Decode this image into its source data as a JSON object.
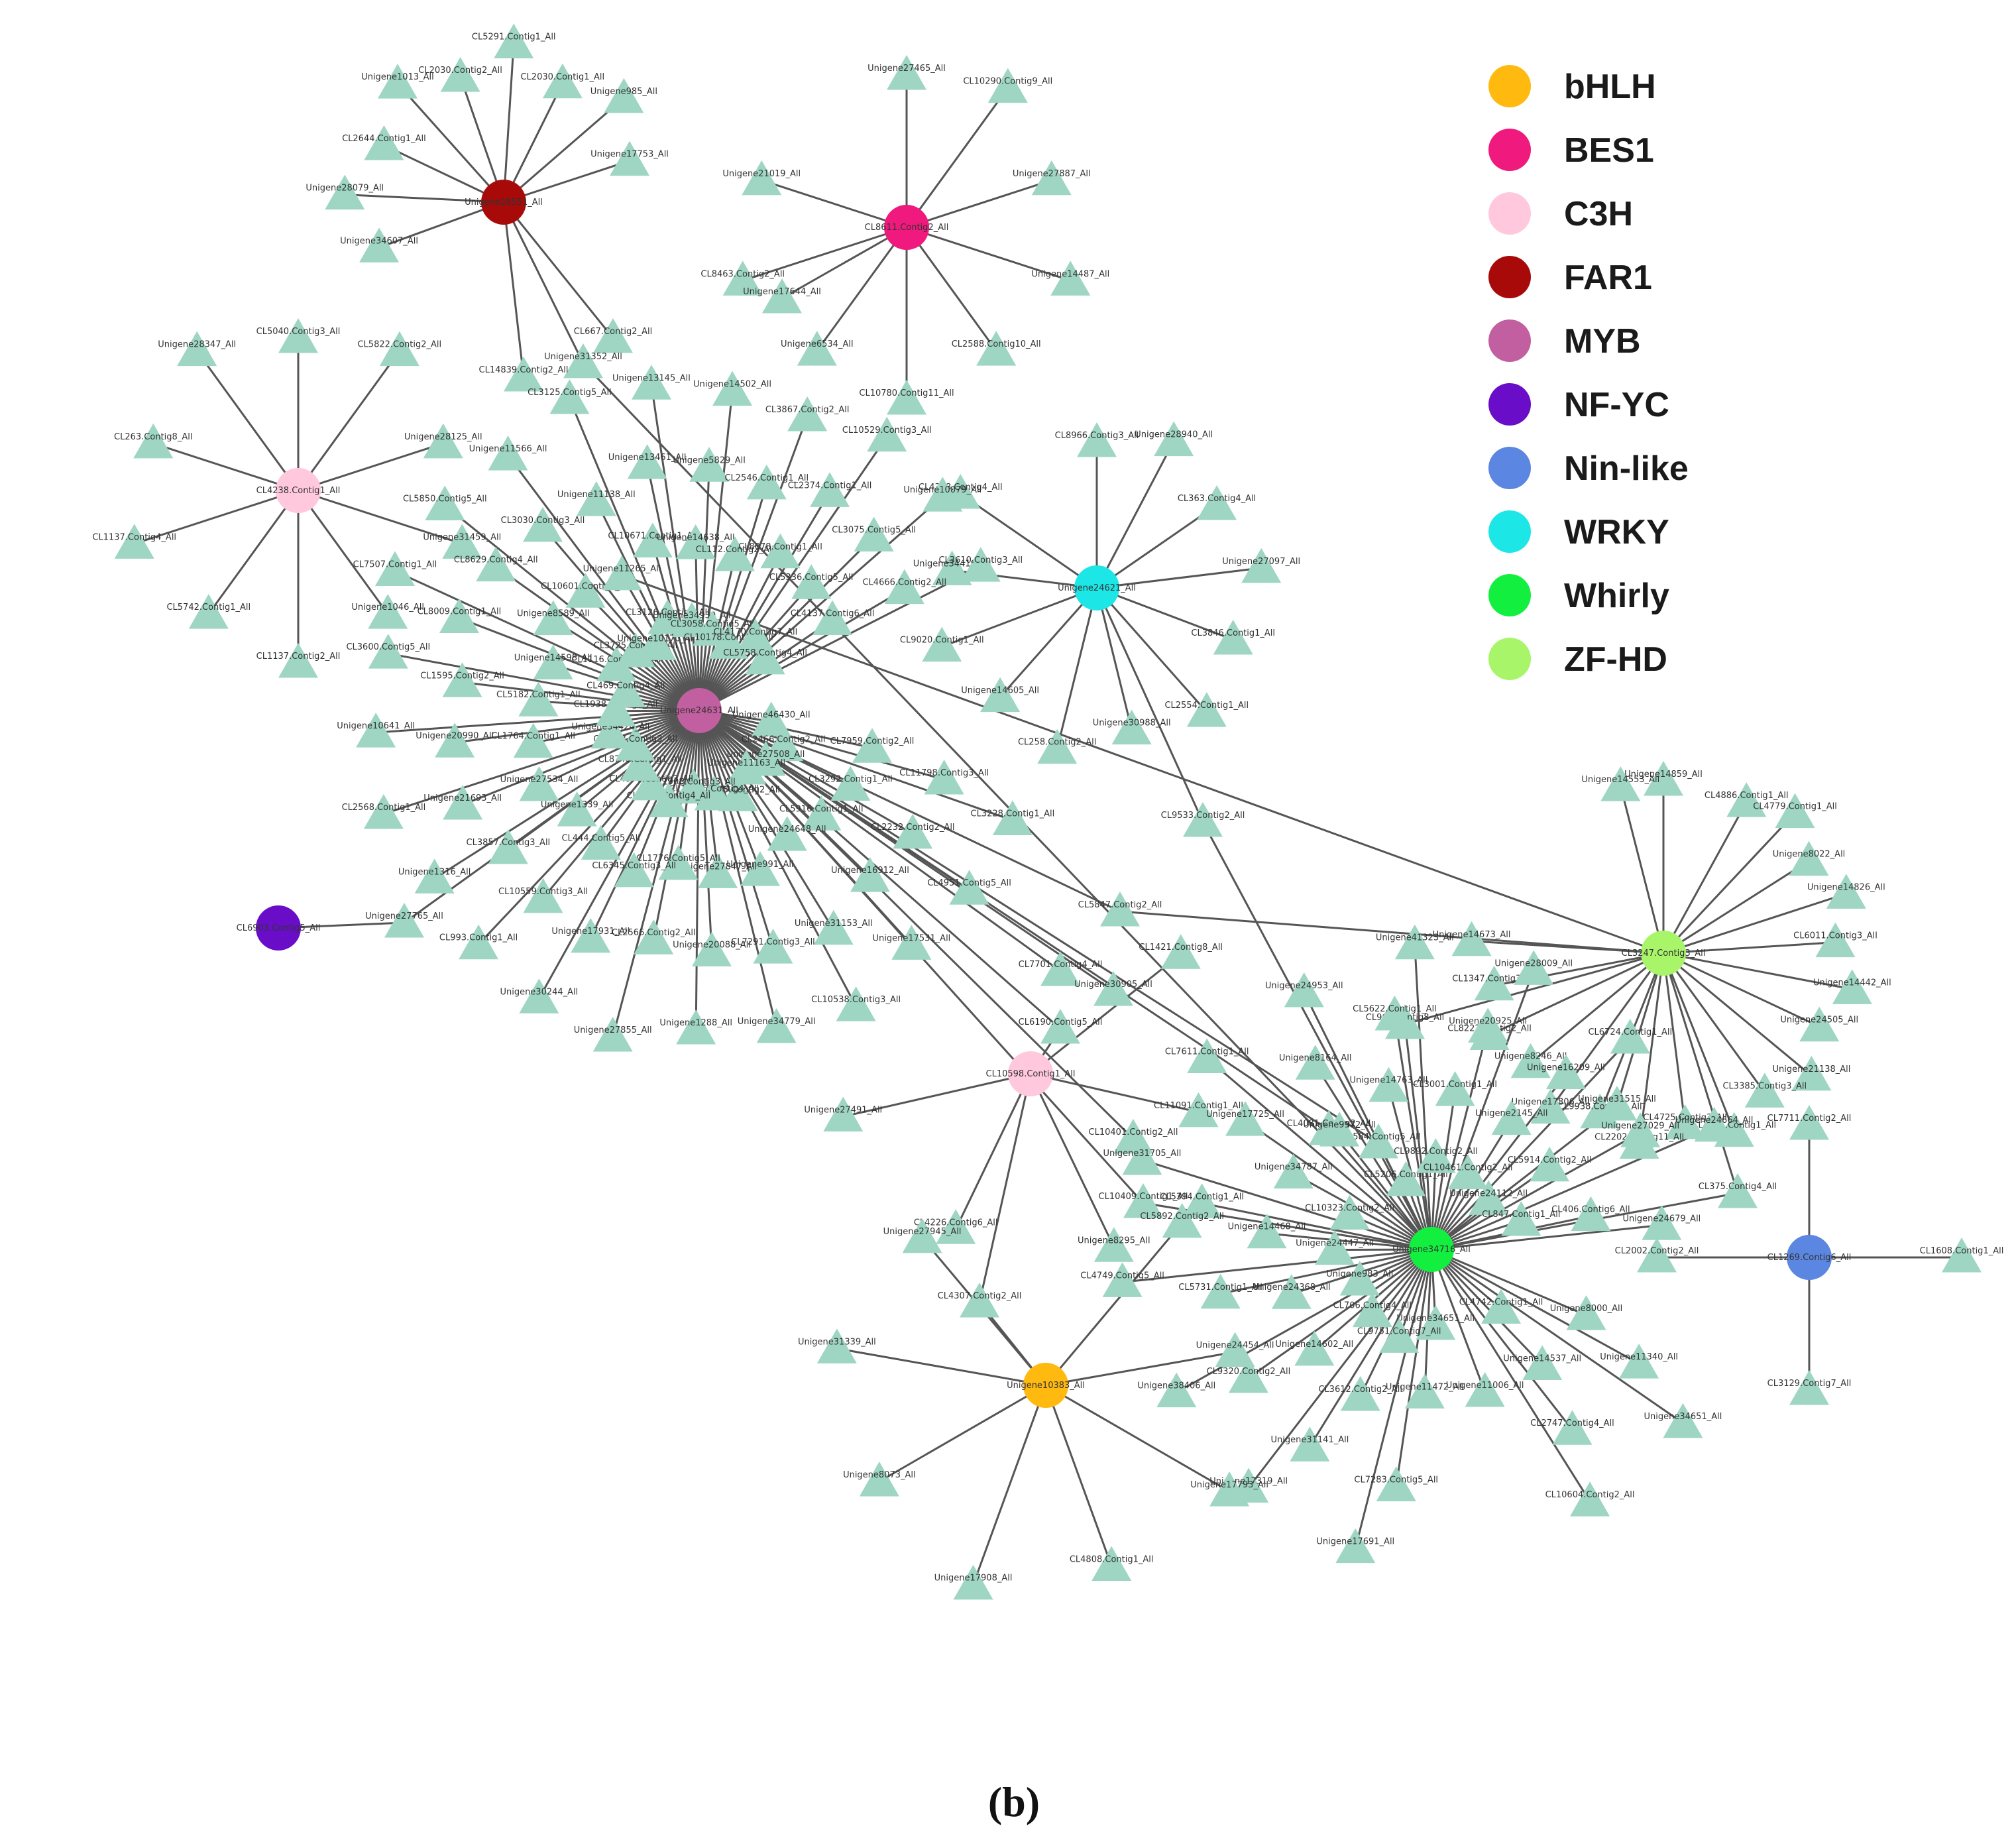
{
  "legend": [
    {
      "name": "bHLH",
      "color": "#FFB90F"
    },
    {
      "name": "BES1",
      "color": "#F0197D"
    },
    {
      "name": "C3H",
      "color": "#FFC8DD"
    },
    {
      "name": "FAR1",
      "color": "#A80A0A"
    },
    {
      "name": "MYB",
      "color": "#C25FA0"
    },
    {
      "name": "NF-YC",
      "color": "#6A0DC9"
    },
    {
      "name": "Nin-like",
      "color": "#5B86E1"
    },
    {
      "name": "WRKY",
      "color": "#1DE6E6"
    },
    {
      "name": "Whirly",
      "color": "#13EF3F"
    },
    {
      "name": "ZF-HD",
      "color": "#A8F56A"
    }
  ],
  "caption": "(b)",
  "target_color": "#9ed6c3",
  "hubs": [
    {
      "id": "FAR1",
      "family": "FAR1",
      "label": "Unigene28551_All",
      "targets": [
        "Unigene34607_All",
        "Unigene28079_All",
        "CL2644.Contig1_All",
        "Unigene1013_All",
        "CL2030.Contig2_All",
        "CL5291.Contig1_All",
        "CL2030.Contig1_All",
        "Unigene985_All",
        "Unigene17753_All",
        "CL667.Contig2_All",
        "Unigene31352_All",
        "CL14839.Contig2_All"
      ]
    },
    {
      "id": "BES1",
      "family": "BES1",
      "label": "CL8611.Contig2_All",
      "targets": [
        "Unigene27465_All",
        "CL10290.Contig9_All",
        "Unigene27887_All",
        "Unigene14487_All",
        "CL2588.Contig10_All",
        "CL10780.Contig11_All",
        "Unigene6534_All",
        "CL8463.Contig2_All",
        "Unigene21019_All",
        "Unigene17644_All"
      ]
    },
    {
      "id": "C3H-a",
      "family": "C3H",
      "label": "CL4238.Contig1_All",
      "targets": [
        "CL5040.Contig3_All",
        "CL5822.Contig2_All",
        "Unigene28125_All",
        "Unigene31459_All",
        "Unigene1046_All",
        "CL1137.Contig2_All",
        "CL5742.Contig1_All",
        "CL1137.Contig4_All",
        "CL263.Contig8_All",
        "Unigene28347_All"
      ]
    },
    {
      "id": "WRKY",
      "family": "WRKY",
      "label": "Unigene24621_All",
      "targets": [
        "CL8966.Contig3_All",
        "Unigene28940_All",
        "CL363.Contig4_All",
        "Unigene27097_All",
        "CL3846.Contig1_All",
        "CL2554.Contig1_All",
        "Unigene30988_All",
        "CL258.Contig2_All",
        "Unigene14605_All",
        "CL9020.Contig1_All",
        "Unigene34410_All",
        "CL4368.Contig4_All",
        "CL9533.Contig2_All"
      ]
    },
    {
      "id": "MYB",
      "family": "MYB",
      "label": "Unigene24631_All",
      "targets": [
        "Unigene46430_All",
        "CL7959.Contig2_All",
        "CL11798.Contig3_All",
        "CL3228.Contig1_All",
        "CL2466.Contig2_All",
        "CL3292.Contig1_All",
        "CL2232.Contig2_All",
        "CL4951.Contig5_All",
        "Unigene27508_All",
        "CL5916.Contig1_All",
        "Unigene16912_All",
        "Unigene17531_All",
        "Unigene11163_All",
        "Unigene24648_All",
        "Unigene31153_All",
        "CL10538.Contig3_All",
        "CL4545.Contig2_All",
        "Unigene991_All",
        "CL7291.Contig3_All",
        "Unigene34779_All",
        "CL11116.Contig4_All",
        "Unigene27847_All",
        "Unigene20088_All",
        "Unigene1288_All",
        "CL1908.Contig3_All",
        "CL1776.Contig5_All",
        "CL2566.Contig2_All",
        "Unigene27855_All",
        "CL6566.Contig4_All",
        "CL6345.Contig3_All",
        "Unigene17931_All",
        "Unigene30244_All",
        "CL4977.Contig3_All",
        "CL444.Contig5_All",
        "CL10559.Contig3_All",
        "CL993.Contig1_All",
        "CL8748.Contig1_All",
        "Unigene1339_All",
        "CL3857.Contig3_All",
        "Unigene1316_All",
        "CL3508.Contig3_All",
        "Unigene27534_All",
        "Unigene21693_All",
        "CL2568.Contig1_All",
        "Unigene34424_All",
        "CL1764.Contig1_All",
        "Unigene20990_All",
        "Unigene10641_All",
        "CL1938.Contig2_All",
        "CL5182.Contig1_All",
        "CL1595.Contig2_All",
        "CL3600.Contig5_All",
        "CL469.Contig4_All",
        "Unigene14598_All",
        "CL8009.Contig1_All",
        "CL7507.Contig1_All",
        "CL1116.Contig16_All",
        "Unigene8589_All",
        "CL8629.Contig4_All",
        "CL5850.Contig5_All",
        "CL3725.Contig1_All",
        "CL10601.Contig3_All",
        "CL3030.Contig3_All",
        "Unigene11566_All",
        "Unigene10170_All",
        "Unigene11265_All",
        "Unigene11138_All",
        "CL3125.Contig5_All",
        "CL3126.Contig1_All",
        "CL10671.Contig1_All",
        "Unigene13461_All",
        "Unigene13145_All",
        "Unigene34930_All",
        "Unigene14638_All",
        "Unigene5829_All",
        "Unigene14502_All",
        "CL3058.Contig5_All",
        "CL112.Contig2_All",
        "CL2546.Contig1_All",
        "CL3867.Contig2_All",
        "CL10178.Contig1_All",
        "CL8078.Contig1_All",
        "CL2374.Contig1_All",
        "CL10529.Contig3_All",
        "CL4170.Contig7_All",
        "CL5336.Contig5_All",
        "CL3075.Contig5_All",
        "Unigene10079_All",
        "CL5758.Contig4_All",
        "CL4137.Contig6_All",
        "CL4666.Contig2_All",
        "CL3610.Contig3_All",
        "Unigene27765_All",
        "CL5847.Contig2_All",
        "CL7701.Contig4_All",
        "Unigene30905_All",
        "CL6190.Contig5_All",
        "CL10401.Contig2_All",
        "CL10409.Contig1_All",
        "CL4081.Contig2_All",
        "CL4584.Contig5_All"
      ]
    },
    {
      "id": "NF-YC",
      "family": "NF-YC",
      "label": "CL6903.Contig5_All",
      "targets": [
        "Unigene27765_All"
      ]
    },
    {
      "id": "ZF-HD",
      "family": "ZF-HD",
      "label": "CL3247.Contig3_All",
      "targets": [
        "Unigene14859_All",
        "Unigene11265_All",
        "CL4886.Contig1_All",
        "CL4779.Contig1_All",
        "Unigene8022_All",
        "Unigene14826_All",
        "CL6011.Contig3_All",
        "Unigene14442_All",
        "Unigene24505_All",
        "Unigene21138_All",
        "CL3385.Contig3_All",
        "CL4291.Contig1_All",
        "CL4725.Contig3_All",
        "CL2202.Contig11_All",
        "CL9938.Contig4_All",
        "Unigene17806_All",
        "Unigene8246_All",
        "CL8222.Contig2_All",
        "CL1347.Contig3_All",
        "Unigene14673_All",
        "Unigene31515_All",
        "CL375.Contig4_All",
        "CL5847.Contig2_All",
        "CL960.Contig8_All",
        "Unigene14553_All"
      ]
    },
    {
      "id": "C3H-b",
      "family": "C3H",
      "label": "CL10598.Contig1_All",
      "targets": [
        "CL6190.Contig5_All",
        "CL1421.Contig8_All",
        "CL11091.Contig1_All",
        "Unigene8295_All",
        "CL4226.Contig6_All",
        "Unigene27491_All",
        "CL4307.Contig2_All"
      ]
    },
    {
      "id": "Whirly",
      "family": "Whirly",
      "label": "Unigene34716_All",
      "targets": [
        "CL960.Contig8_All",
        "Unigene8000_All",
        "Unigene11340_All",
        "Unigene34651_All",
        "CL4742.Contig1_All",
        "Unigene14537_All",
        "CL2747.Contig4_All",
        "CL10604.Contig2_All",
        "Unigene31515_All",
        "Unigene11006_All",
        "CL4081.Contig2_All",
        "CL4584.Contig5_All",
        "Unigene34651b_All",
        "Unigene11472_All",
        "CL7283.Contig5_All",
        "Unigene17691_All",
        "CL9751.Contig7_All",
        "CL3612.Contig2_All",
        "Unigene31141_All",
        "Unigene17319_All",
        "CL706.Contig4_All",
        "Unigene14602_All",
        "CL9320.Contig2_All",
        "Unigene38406_All",
        "Unigene983_All",
        "Unigene24368_All",
        "CL5731.Contig1_All",
        "CL4749.Contig5_All",
        "Unigene24447_All",
        "Unigene14468_All",
        "CL5394.Contig1_All",
        "Unigene31705_All",
        "CL10323.Contig2_All",
        "Unigene34787_All",
        "Unigene17725_All",
        "CL7611.Contig1_All",
        "Unigene31352_All",
        "Unigene9972_All",
        "Unigene8164_All",
        "Unigene24953_All",
        "CL5206.Contig1_All",
        "Unigene14763_All",
        "CL5622.Contig1_All",
        "Unigene41323_All",
        "CL9892.Contig2_All",
        "CL3001.Contig1_All",
        "Unigene20925_All",
        "Unigene28009_All",
        "CL10461.Contig2_All",
        "Unigene2145_All",
        "Unigene16209_All",
        "CL6724.Contig1_All",
        "Unigene24112_All",
        "CL5914.Contig2_All",
        "Unigene27029_All",
        "Unigene24664_All",
        "CL847.Contig1_All",
        "CL406.Contig6_All",
        "Unigene24679_All",
        "CL10409.Contig1_All",
        "CL375.Contig4_All",
        "CL9533.Contig2_All"
      ]
    },
    {
      "id": "Nin-like",
      "family": "Nin-like",
      "label": "CL1269.Contig6_All",
      "targets": [
        "CL7711.Contig2_All",
        "CL1608.Contig1_All",
        "CL3129.Contig7_All",
        "CL2002.Contig2_All"
      ]
    },
    {
      "id": "bHLH",
      "family": "bHLH",
      "label": "Unigene10383_All",
      "targets": [
        "CL4307.Contig2_All",
        "CL5892.Contig2_All",
        "Unigene24454_All",
        "Unigene17793_All",
        "CL4808.Contig1_All",
        "Unigene17908_All",
        "Unigene8073_All",
        "Unigene31339_All",
        "Unigene27945_All"
      ]
    }
  ]
}
